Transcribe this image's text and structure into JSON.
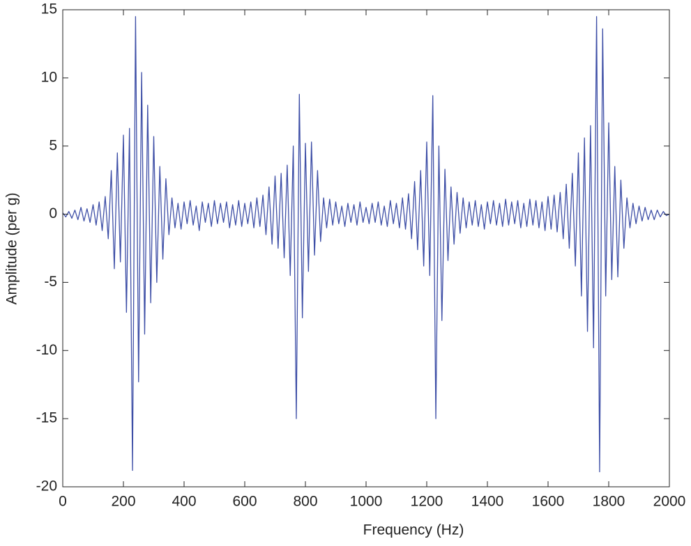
{
  "chart_data": {
    "type": "line",
    "xlabel": "Frequency (Hz)",
    "ylabel": "Amplitude (per g)",
    "xlim": [
      0,
      2000
    ],
    "ylim": [
      -20,
      15
    ],
    "xticks": [
      0,
      200,
      400,
      600,
      800,
      1000,
      1200,
      1400,
      1600,
      1800,
      2000
    ],
    "yticks": [
      -20,
      -15,
      -10,
      -5,
      0,
      5,
      10,
      15
    ],
    "grid": false,
    "series": [
      {
        "color": "#3d4ea6",
        "x": [
          0,
          10,
          20,
          30,
          40,
          50,
          60,
          70,
          80,
          90,
          100,
          110,
          120,
          130,
          140,
          150,
          160,
          170,
          180,
          190,
          200,
          210,
          220,
          230,
          240,
          250,
          260,
          270,
          280,
          290,
          300,
          310,
          320,
          330,
          340,
          350,
          360,
          370,
          380,
          390,
          400,
          410,
          420,
          430,
          440,
          450,
          460,
          470,
          480,
          490,
          500,
          510,
          520,
          530,
          540,
          550,
          560,
          570,
          580,
          590,
          600,
          610,
          620,
          630,
          640,
          650,
          660,
          670,
          680,
          690,
          700,
          710,
          720,
          730,
          740,
          750,
          760,
          770,
          780,
          790,
          800,
          810,
          820,
          830,
          840,
          850,
          860,
          870,
          880,
          890,
          900,
          910,
          920,
          930,
          940,
          950,
          960,
          970,
          980,
          990,
          1000,
          1010,
          1020,
          1030,
          1040,
          1050,
          1060,
          1070,
          1080,
          1090,
          1100,
          1110,
          1120,
          1130,
          1140,
          1150,
          1160,
          1170,
          1180,
          1190,
          1200,
          1210,
          1220,
          1230,
          1240,
          1250,
          1260,
          1270,
          1280,
          1290,
          1300,
          1310,
          1320,
          1330,
          1340,
          1350,
          1360,
          1370,
          1380,
          1390,
          1400,
          1410,
          1420,
          1430,
          1440,
          1450,
          1460,
          1470,
          1480,
          1490,
          1500,
          1510,
          1520,
          1530,
          1540,
          1550,
          1560,
          1570,
          1580,
          1590,
          1600,
          1610,
          1620,
          1630,
          1640,
          1650,
          1660,
          1670,
          1680,
          1690,
          1700,
          1710,
          1720,
          1730,
          1740,
          1750,
          1760,
          1770,
          1780,
          1790,
          1800,
          1810,
          1820,
          1830,
          1840,
          1850,
          1860,
          1870,
          1880,
          1890,
          1900,
          1910,
          1920,
          1930,
          1940,
          1950,
          1960,
          1970,
          1980,
          1990,
          2000
        ],
        "values": [
          0.1,
          -0.2,
          0.2,
          -0.3,
          0.3,
          -0.4,
          0.5,
          -0.5,
          0.4,
          -0.6,
          0.7,
          -0.8,
          0.9,
          -1.2,
          1.3,
          -1.8,
          3.2,
          -4.0,
          4.5,
          -3.5,
          5.8,
          -7.2,
          6.3,
          -18.8,
          14.5,
          -12.3,
          10.4,
          -8.8,
          8.0,
          -6.5,
          5.7,
          -5.0,
          3.5,
          -3.3,
          2.6,
          -1.5,
          1.2,
          -1.0,
          0.8,
          -1.1,
          0.9,
          -0.7,
          1.0,
          -0.8,
          0.6,
          -1.2,
          0.9,
          -0.6,
          0.8,
          -0.9,
          1.0,
          -0.7,
          0.8,
          -0.6,
          0.9,
          -1.0,
          0.7,
          -0.8,
          1.0,
          -0.9,
          0.8,
          -0.7,
          0.9,
          -1.0,
          1.2,
          -0.9,
          1.4,
          -1.5,
          2.0,
          -2.2,
          2.8,
          -2.5,
          3.0,
          -3.2,
          3.6,
          -4.5,
          5.0,
          -15.0,
          8.8,
          -7.6,
          5.2,
          -4.2,
          5.3,
          -3.0,
          3.2,
          -2.0,
          1.2,
          -1.0,
          1.1,
          -0.8,
          0.9,
          -0.7,
          0.6,
          -0.9,
          0.8,
          -0.6,
          0.7,
          -0.8,
          0.9,
          -0.6,
          0.5,
          -0.7,
          0.8,
          -0.6,
          0.9,
          -0.8,
          0.6,
          -0.9,
          1.0,
          -0.7,
          0.8,
          -1.0,
          1.2,
          -1.1,
          1.5,
          -1.8,
          2.4,
          -2.6,
          3.2,
          -3.8,
          5.3,
          -4.5,
          8.7,
          -15.0,
          5.0,
          -7.8,
          3.3,
          -3.4,
          2.0,
          -2.2,
          1.6,
          -1.4,
          1.2,
          -1.0,
          0.9,
          -0.8,
          1.0,
          -0.9,
          0.7,
          -1.1,
          0.9,
          -0.7,
          1.0,
          -0.8,
          0.8,
          -0.9,
          1.1,
          -0.8,
          0.9,
          -0.7,
          1.0,
          -1.0,
          0.8,
          -0.9,
          1.1,
          -0.8,
          1.0,
          -1.0,
          0.9,
          -1.2,
          1.3,
          -1.1,
          1.4,
          -1.3,
          1.6,
          -1.8,
          2.2,
          -2.5,
          3.0,
          -3.8,
          4.5,
          -6.0,
          5.6,
          -8.6,
          6.5,
          -9.8,
          14.5,
          -18.9,
          13.6,
          -6.0,
          6.7,
          -4.8,
          3.5,
          -4.6,
          2.5,
          -2.5,
          1.2,
          -1.0,
          0.8,
          -0.7,
          0.6,
          -0.5,
          0.5,
          -0.4,
          0.3,
          -0.4,
          0.3,
          -0.2,
          0.2,
          -0.1,
          0.0
        ]
      }
    ]
  }
}
